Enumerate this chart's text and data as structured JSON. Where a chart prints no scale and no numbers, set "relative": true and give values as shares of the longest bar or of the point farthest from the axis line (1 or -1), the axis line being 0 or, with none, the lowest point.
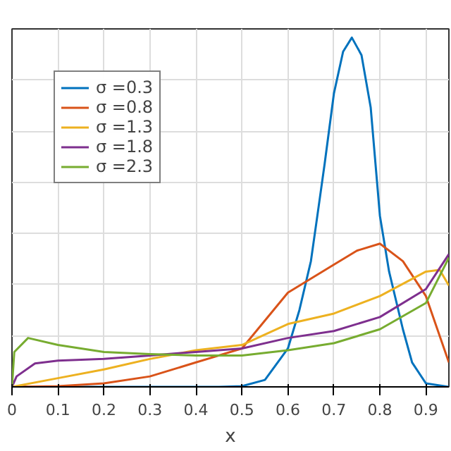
{
  "chart_data": {
    "type": "line",
    "xlabel": "x",
    "relative": true,
    "xlim": [
      0,
      0.95
    ],
    "xticks": [
      0,
      0.1,
      0.2,
      0.3,
      0.4,
      0.5,
      0.6,
      0.7,
      0.8,
      0.9
    ],
    "grid": true,
    "legend": "top left",
    "marker": "none",
    "line_style": "solid",
    "series": [
      {
        "name": "σ =0.3",
        "color": "#0072bd",
        "x": [
          0,
          0.45,
          0.5,
          0.55,
          0.6,
          0.625,
          0.65,
          0.664,
          0.68,
          0.7,
          0.72,
          0.739,
          0.76,
          0.78,
          0.8,
          0.82,
          0.85,
          0.87,
          0.9,
          0.95
        ],
        "values": [
          0,
          0,
          0.002,
          0.02,
          0.11,
          0.22,
          0.36,
          0.49,
          0.64,
          0.84,
          0.96,
          1,
          0.95,
          0.8,
          0.49,
          0.33,
          0.165,
          0.07,
          0.01,
          0
        ]
      },
      {
        "name": "σ =0.8",
        "color": "#d95319",
        "x": [
          0,
          0.1,
          0.2,
          0.3,
          0.4,
          0.5,
          0.6,
          0.7,
          0.75,
          0.8,
          0.85,
          0.9,
          0.95
        ],
        "values": [
          0,
          0.002,
          0.01,
          0.03,
          0.07,
          0.11,
          0.27,
          0.35,
          0.39,
          0.41,
          0.36,
          0.26,
          0.07
        ]
      },
      {
        "name": "σ =1.3",
        "color": "#edb120",
        "x": [
          0,
          0.1,
          0.2,
          0.3,
          0.4,
          0.5,
          0.6,
          0.7,
          0.8,
          0.9,
          0.93,
          0.95
        ],
        "values": [
          0,
          0.025,
          0.05,
          0.08,
          0.105,
          0.12,
          0.18,
          0.21,
          0.26,
          0.33,
          0.335,
          0.29
        ]
      },
      {
        "name": "σ =1.8",
        "color": "#7e2f8e",
        "x": [
          0,
          0.01,
          0.05,
          0.1,
          0.2,
          0.3,
          0.4,
          0.5,
          0.6,
          0.7,
          0.8,
          0.9,
          0.95
        ],
        "values": [
          0,
          0.03,
          0.067,
          0.075,
          0.08,
          0.09,
          0.1,
          0.11,
          0.14,
          0.16,
          0.2,
          0.28,
          0.38
        ]
      },
      {
        "name": "σ =2.3",
        "color": "#77ac30",
        "x": [
          0,
          0.005,
          0.035,
          0.1,
          0.2,
          0.3,
          0.4,
          0.5,
          0.6,
          0.7,
          0.8,
          0.9,
          0.95
        ],
        "values": [
          0,
          0.1,
          0.14,
          0.12,
          0.1,
          0.094,
          0.09,
          0.09,
          0.105,
          0.125,
          0.165,
          0.24,
          0.37
        ]
      }
    ]
  }
}
